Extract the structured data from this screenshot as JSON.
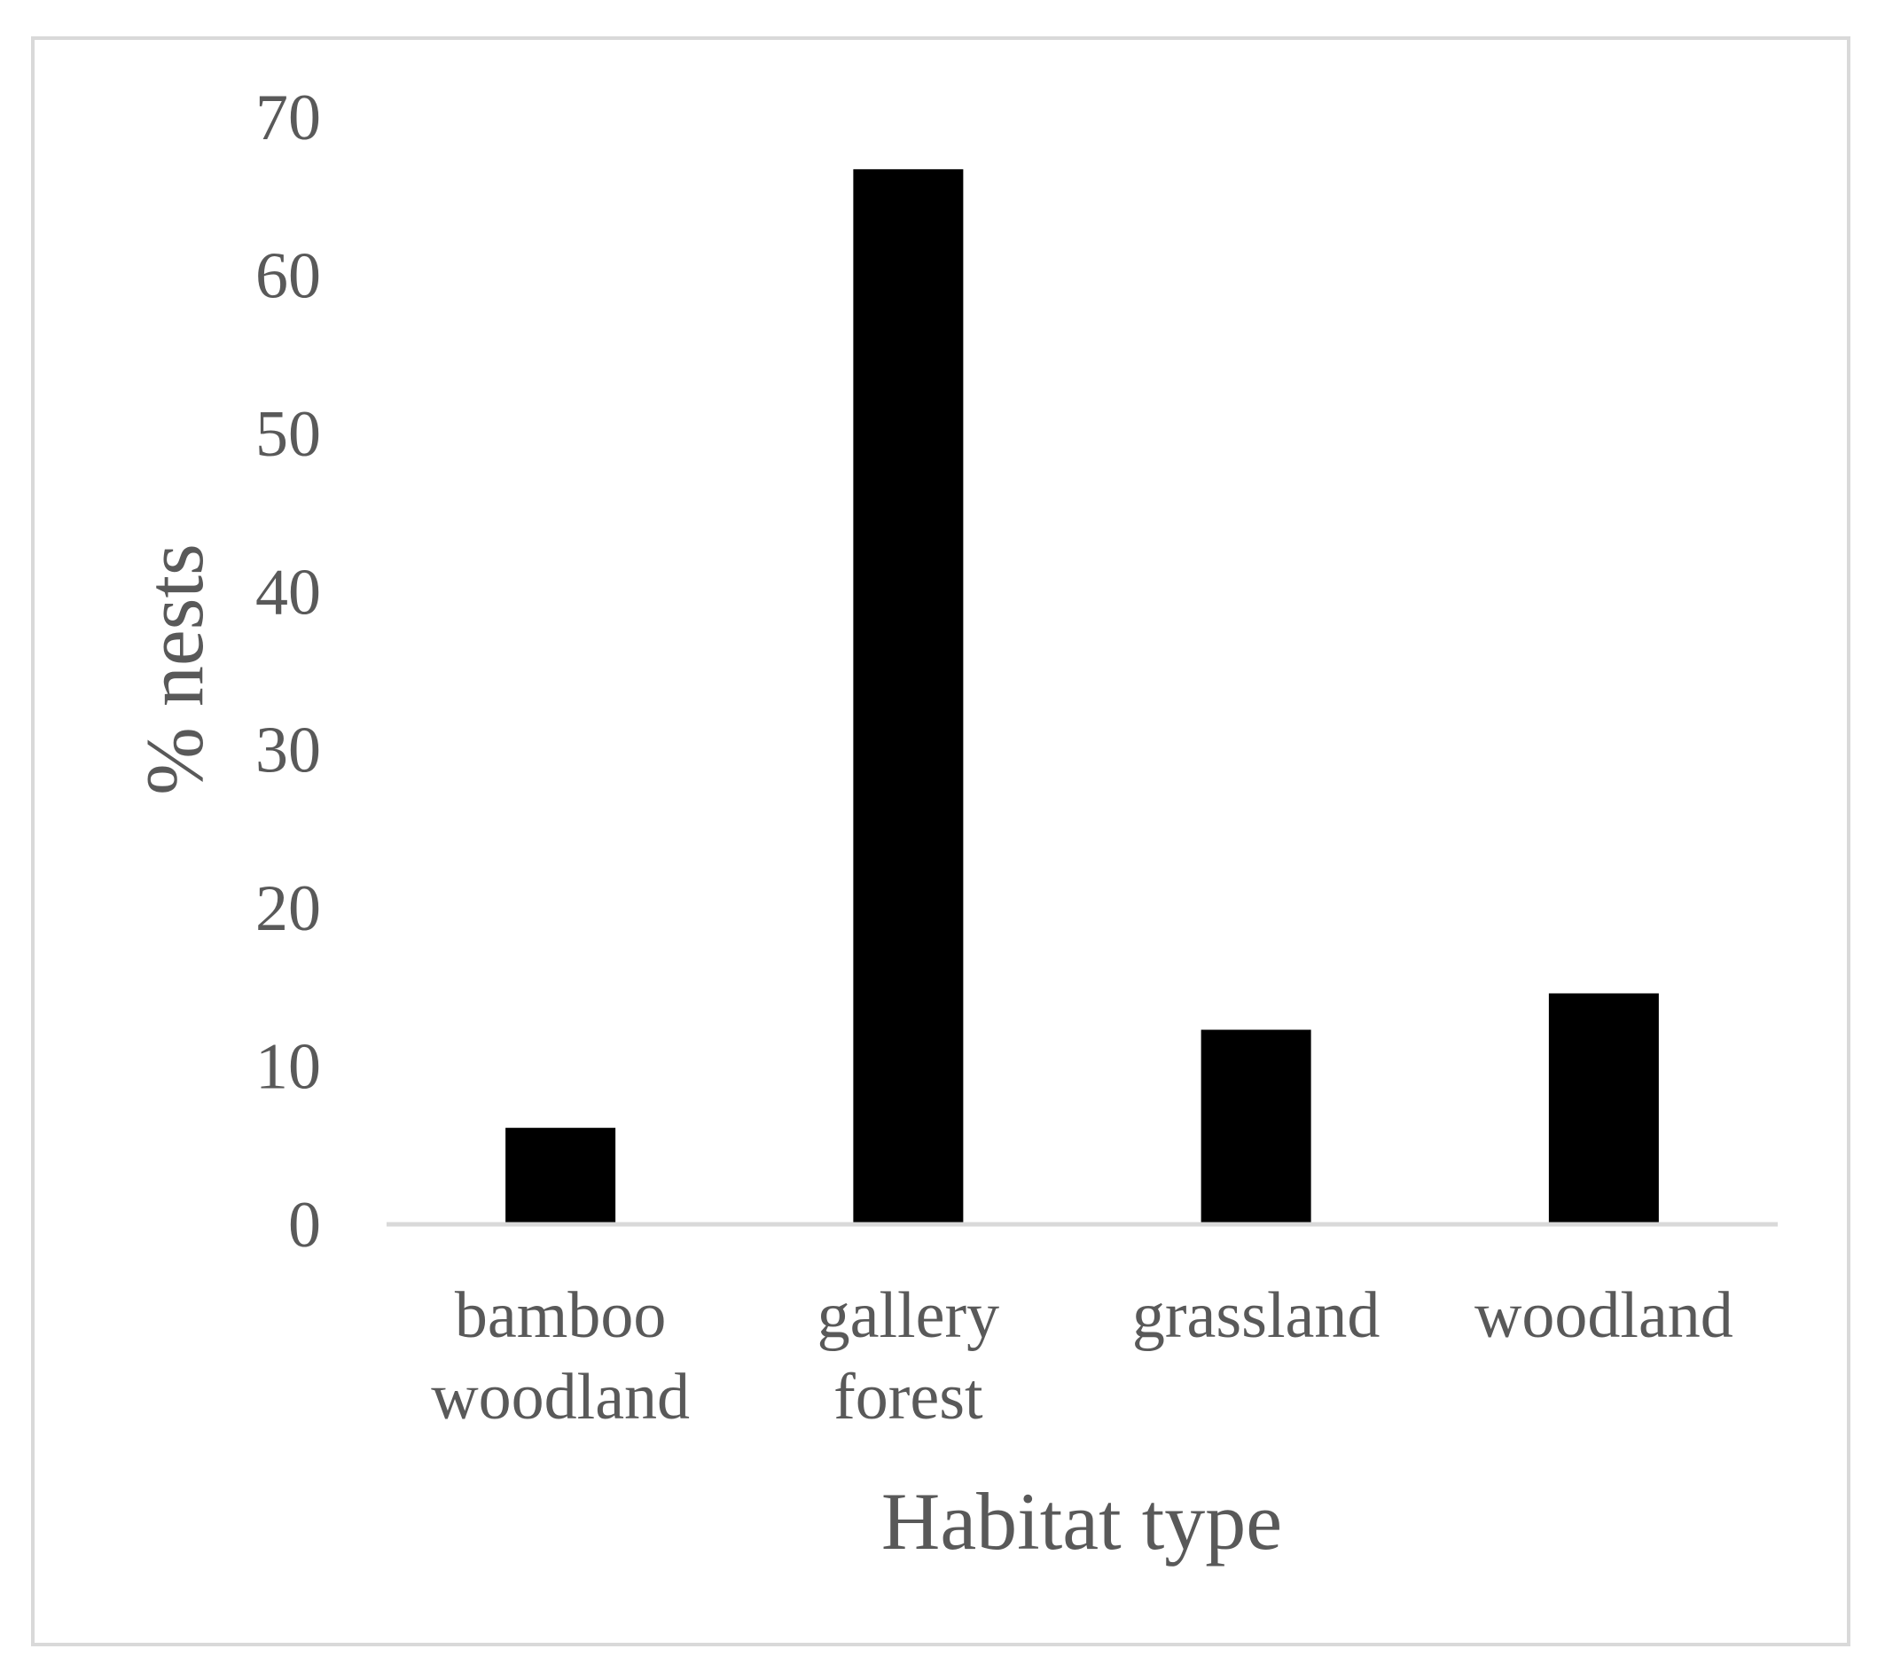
{
  "chart_data": {
    "type": "bar",
    "categories": [
      [
        "bamboo",
        "woodland"
      ],
      [
        "gallery",
        "forest"
      ],
      [
        "grassland"
      ],
      [
        "woodland"
      ]
    ],
    "values": [
      6.1,
      66.7,
      12.3,
      14.6
    ],
    "title": "",
    "xlabel": "Habitat type",
    "ylabel": "% nests",
    "ylim": [
      0,
      70
    ],
    "yticks": [
      "0",
      "10",
      "20",
      "30",
      "40",
      "50",
      "60",
      "70"
    ],
    "grid": false,
    "legend": "none",
    "bar_color": "#000000",
    "axis_color": "#d9d9d9",
    "text_color": "#595959"
  }
}
